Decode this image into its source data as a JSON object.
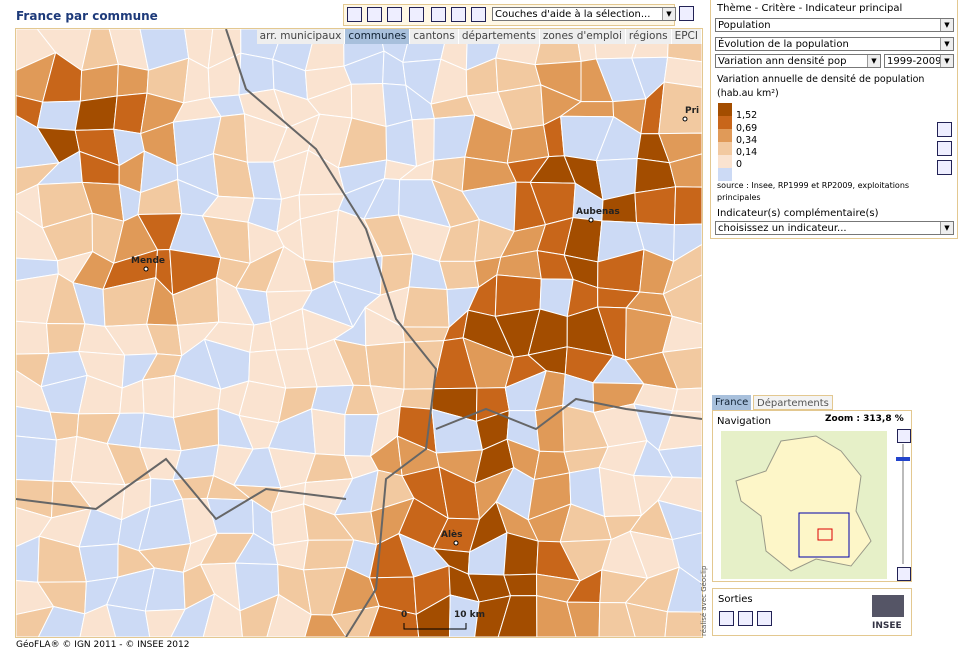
{
  "header": {
    "title": "France par commune"
  },
  "toolbar": {
    "layer_select": "Couches d'aide à la sélection..."
  },
  "tabs": [
    "arr. municipaux",
    "communes",
    "cantons",
    "départements",
    "zones d'emploi",
    "régions",
    "EPCI"
  ],
  "map": {
    "labels": [
      "Pri",
      "Aubenas",
      "Mende",
      "Alès"
    ],
    "scale": [
      "0",
      "10 km"
    ]
  },
  "panel": {
    "heading": "Thème - Critère - Indicateur principal",
    "selects": [
      "Population",
      "Évolution de la population",
      "Variation ann densité pop",
      "1999-2009"
    ]
  },
  "legend": {
    "title": "Variation annuelle de densité de population (hab.au km²)",
    "items": [
      "1,52",
      "0,69",
      "0,34",
      "0,14",
      "0"
    ],
    "source": "source : Insee, RP1999 et RP2009, exploitations principales"
  },
  "complementary": {
    "label": "Indicateur(s) complémentaire(s)",
    "select": "choisissez un indicateur..."
  },
  "navigator": {
    "tabs": [
      "France",
      "Départements"
    ],
    "title": "Navigation",
    "zoom": "Zoom : 313,8 %",
    "credit": "réalisé avec Géoclip"
  },
  "outputs": {
    "title": "Sorties"
  },
  "logo": "INSEE",
  "footer": "GéoFLA® © IGN 2011 - © INSEE 2012"
}
